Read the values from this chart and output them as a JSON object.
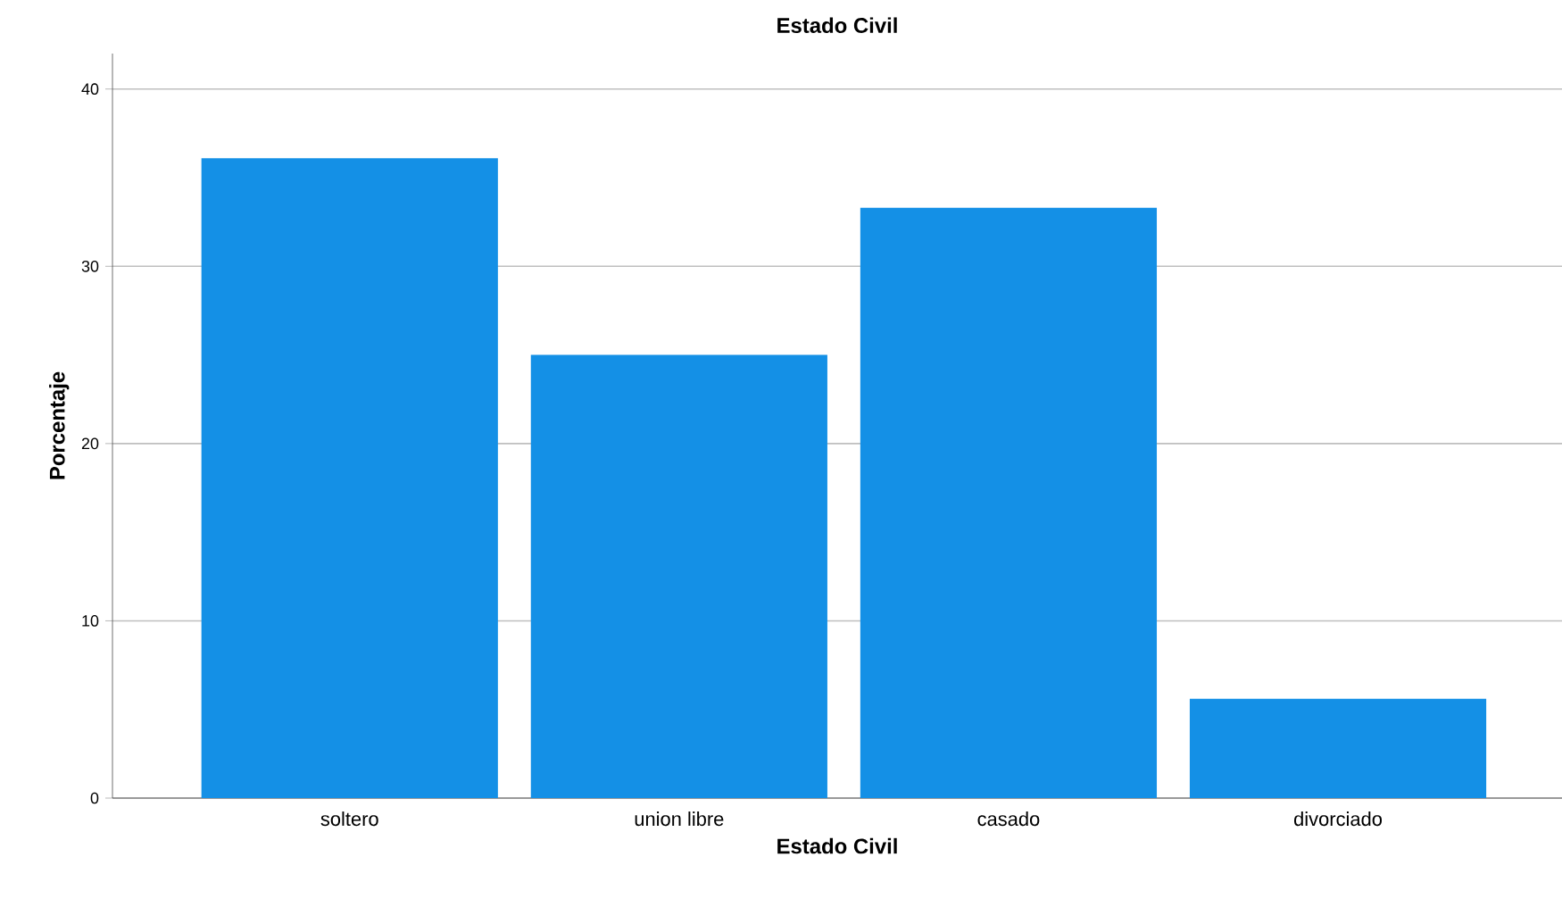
{
  "chart_data": {
    "type": "bar",
    "title": "Estado Civil",
    "xlabel": "Estado Civil",
    "ylabel": "Porcentaje",
    "categories": [
      "soltero",
      "union libre",
      "casado",
      "divorciado"
    ],
    "values": [
      36.1,
      25.0,
      33.3,
      5.6
    ],
    "color": "#1490e6",
    "ylim": [
      0,
      42
    ],
    "yticks": [
      0,
      10,
      20,
      30,
      40
    ],
    "grid": "y"
  }
}
